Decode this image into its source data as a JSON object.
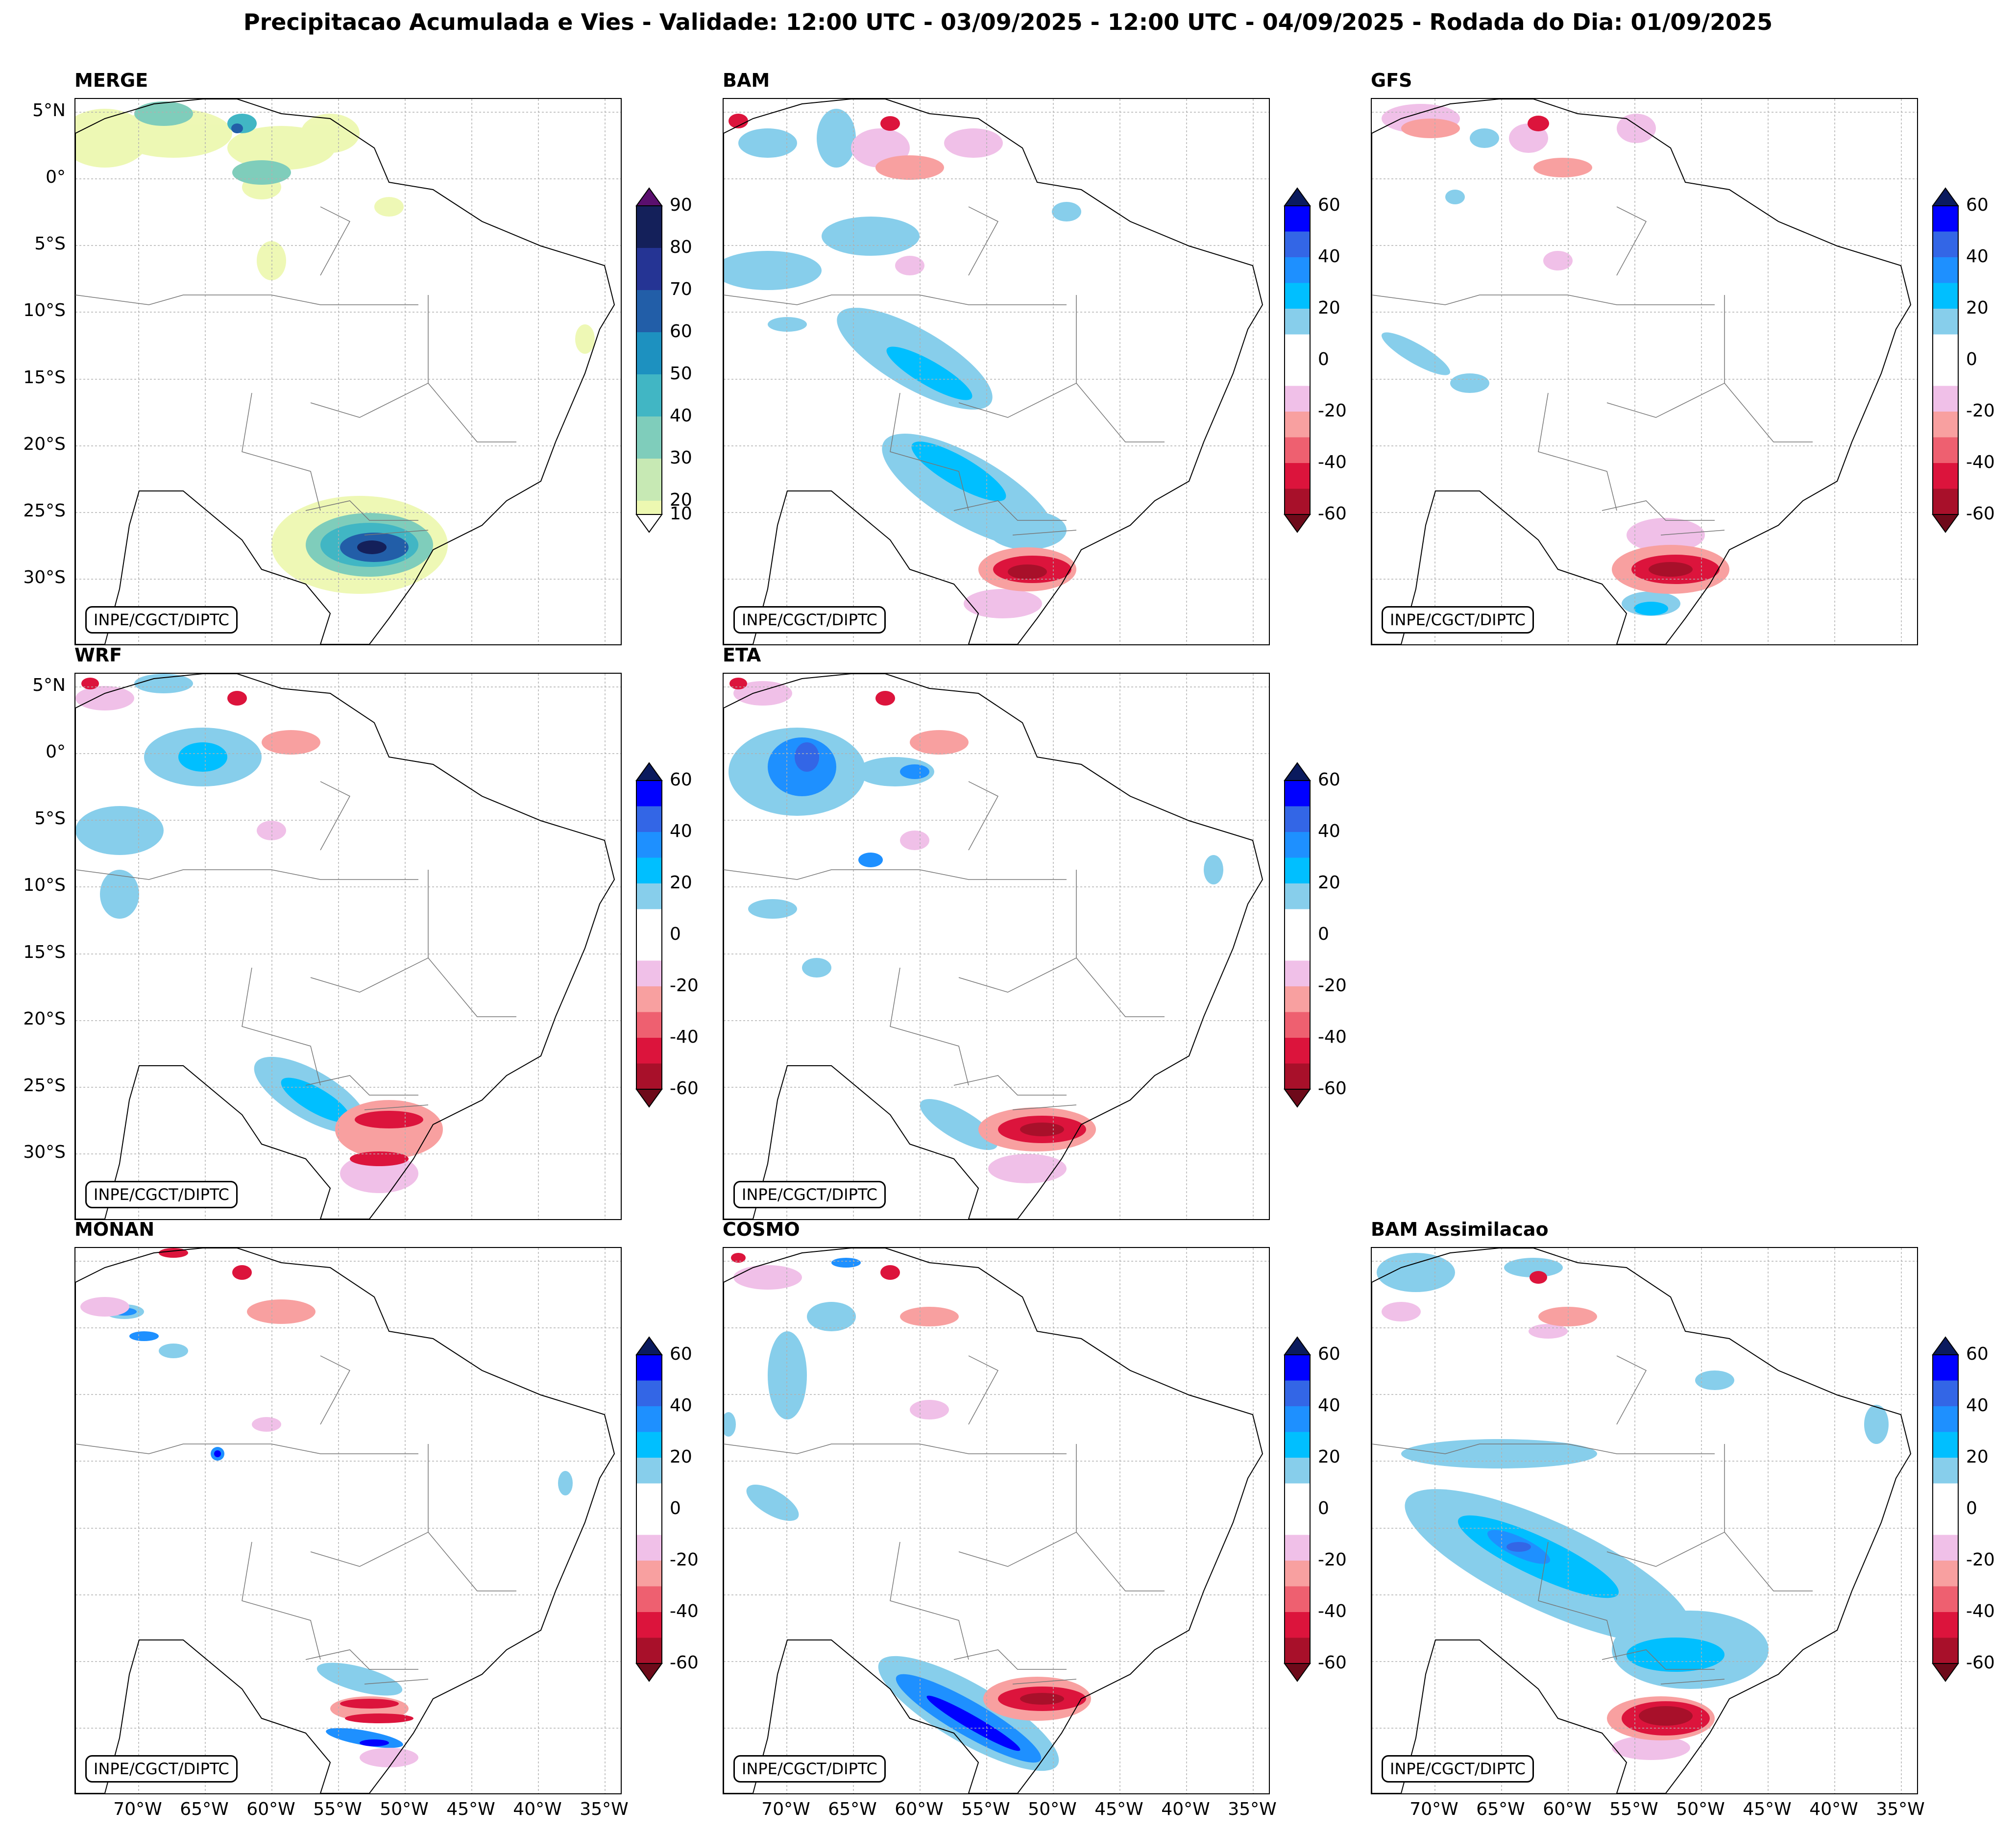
{
  "title": "Precipitacao Acumulada e Vies - Validade: 12:00 UTC - 03/09/2025 - 12:00 UTC - 04/09/2025 - Rodada do Dia: 01/09/2025",
  "credit": "INPE/CGCT/DIPTC",
  "panels": {
    "merge": {
      "name": "MERGE"
    },
    "bam": {
      "name": "BAM"
    },
    "gfs": {
      "name": "GFS"
    },
    "wrf": {
      "name": "WRF"
    },
    "eta": {
      "name": "ETA"
    },
    "monan": {
      "name": "MONAN"
    },
    "cosmo": {
      "name": "COSMO"
    },
    "bamassim": {
      "name": "BAM Assimilacao"
    }
  },
  "axes": {
    "lat": [
      "5°N",
      "0°",
      "5°S",
      "10°S",
      "15°S",
      "20°S",
      "25°S",
      "30°S"
    ],
    "lon": [
      "70°W",
      "65°W",
      "60°W",
      "55°W",
      "50°W",
      "45°W",
      "40°W",
      "35°W"
    ]
  },
  "colorbars": {
    "precip": {
      "labels": [
        "90",
        "80",
        "70",
        "60",
        "50",
        "40",
        "30",
        "20",
        "10"
      ],
      "colors": [
        "#14205a",
        "#253494",
        "#225ea8",
        "#1d91c0",
        "#41b6c4",
        "#7fcdbb",
        "#c7e9b4",
        "#edf8b1"
      ]
    },
    "bias": {
      "labels": [
        "60",
        "40",
        "20",
        "0",
        "-20",
        "-40",
        "-60"
      ],
      "colors": [
        "#0000ff",
        "#3366e6",
        "#1e90ff",
        "#00bfff",
        "#87ceeb",
        "#ffffff",
        "#ffffff",
        "#f0c0e8",
        "#f8a0a0",
        "#ee6070",
        "#dc143c",
        "#a8102a"
      ]
    }
  }
}
